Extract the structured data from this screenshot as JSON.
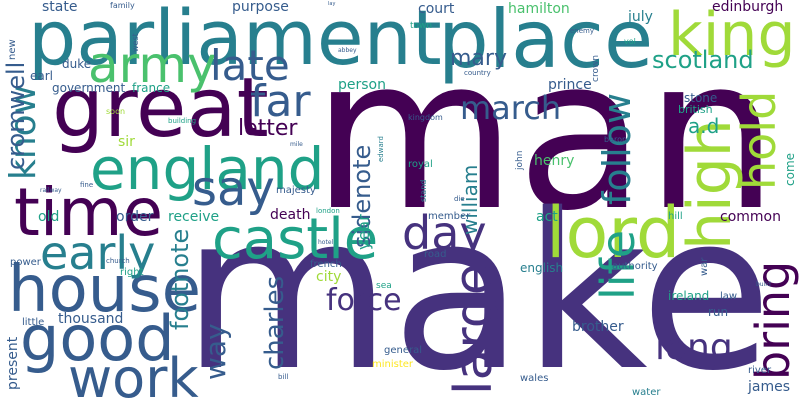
{
  "palette": {
    "dark_purple": "#440154",
    "purple": "#46327e",
    "indigo": "#365c8d",
    "blue": "#277f8e",
    "teal": "#1fa187",
    "green": "#4ac16d",
    "lime": "#a0da39",
    "yellow": "#fde725"
  },
  "words": [
    {
      "id": "man",
      "text": "man"
    },
    {
      "id": "make",
      "text": "make"
    },
    {
      "id": "parliament",
      "text": "parliament"
    },
    {
      "id": "place",
      "text": "place"
    },
    {
      "id": "king",
      "text": "king"
    },
    {
      "id": "army",
      "text": "army"
    },
    {
      "id": "great",
      "text": "great"
    },
    {
      "id": "england",
      "text": "england"
    },
    {
      "id": "time",
      "text": "time"
    },
    {
      "id": "castle",
      "text": "castle"
    },
    {
      "id": "lord",
      "text": "lord"
    },
    {
      "id": "house",
      "text": "house"
    },
    {
      "id": "good",
      "text": "good"
    },
    {
      "id": "work",
      "text": "work"
    },
    {
      "id": "early",
      "text": "early"
    },
    {
      "id": "say",
      "text": "say"
    },
    {
      "id": "far",
      "text": "far"
    },
    {
      "id": "late",
      "text": "late"
    },
    {
      "id": "day",
      "text": "day"
    },
    {
      "id": "high",
      "text": "high"
    },
    {
      "id": "hold",
      "text": "hold"
    },
    {
      "id": "bring",
      "text": "bring"
    },
    {
      "id": "large",
      "text": "large"
    },
    {
      "id": "life",
      "text": "life"
    },
    {
      "id": "follow",
      "text": "follow"
    },
    {
      "id": "know",
      "text": "know"
    },
    {
      "id": "force",
      "text": "force"
    },
    {
      "id": "long",
      "text": "long"
    },
    {
      "id": "march",
      "text": "march"
    },
    {
      "id": "mary",
      "text": "mary"
    },
    {
      "id": "scotland",
      "text": "scotland"
    },
    {
      "id": "cromwell",
      "text": "cromwell"
    },
    {
      "id": "way",
      "text": "way"
    },
    {
      "id": "charles",
      "text": "charles"
    },
    {
      "id": "footnote",
      "text": "footnote"
    },
    {
      "id": "sidenote",
      "text": "sidenote"
    },
    {
      "id": "william",
      "text": "william"
    },
    {
      "id": "letter",
      "text": "letter"
    },
    {
      "id": "a_d",
      "text": "a.d"
    },
    {
      "id": "edinburgh",
      "text": "edinburgh"
    },
    {
      "id": "state",
      "text": "state"
    },
    {
      "id": "purpose",
      "text": "purpose"
    },
    {
      "id": "hamilton",
      "text": "hamilton"
    },
    {
      "id": "court",
      "text": "court"
    },
    {
      "id": "july",
      "text": "july"
    },
    {
      "id": "person",
      "text": "person"
    },
    {
      "id": "prince",
      "text": "prince"
    },
    {
      "id": "government",
      "text": "government"
    },
    {
      "id": "france",
      "text": "france"
    },
    {
      "id": "sir",
      "text": "sir"
    },
    {
      "id": "stone",
      "text": "stone"
    },
    {
      "id": "british",
      "text": "british"
    },
    {
      "id": "order",
      "text": "order"
    },
    {
      "id": "old",
      "text": "old"
    },
    {
      "id": "receive",
      "text": "receive"
    },
    {
      "id": "death",
      "text": "death"
    },
    {
      "id": "common",
      "text": "common"
    },
    {
      "id": "act",
      "text": "act"
    },
    {
      "id": "henry",
      "text": "henry"
    },
    {
      "id": "year",
      "text": "year"
    },
    {
      "id": "city",
      "text": "city"
    },
    {
      "id": "thousand",
      "text": "thousand"
    },
    {
      "id": "english",
      "text": "english"
    },
    {
      "id": "ireland",
      "text": "ireland"
    },
    {
      "id": "brother",
      "text": "brother"
    },
    {
      "id": "general",
      "text": "general"
    },
    {
      "id": "minister",
      "text": "minister"
    },
    {
      "id": "present",
      "text": "present"
    },
    {
      "id": "wales",
      "text": "wales"
    },
    {
      "id": "james",
      "text": "james"
    },
    {
      "id": "water",
      "text": "water"
    },
    {
      "id": "river",
      "text": "river"
    },
    {
      "id": "run",
      "text": "run"
    },
    {
      "id": "law",
      "text": "law"
    },
    {
      "id": "come",
      "text": "come"
    },
    {
      "id": "new",
      "text": "new"
    },
    {
      "id": "earl",
      "text": "earl"
    },
    {
      "id": "duke",
      "text": "duke"
    },
    {
      "id": "family",
      "text": "family"
    },
    {
      "id": "west",
      "text": "west"
    },
    {
      "id": "town",
      "text": "town"
    },
    {
      "id": "country",
      "text": "country"
    },
    {
      "id": "enemy",
      "text": "enemy"
    },
    {
      "id": "vol",
      "text": "vol"
    },
    {
      "id": "crown",
      "text": "crown"
    },
    {
      "id": "kingdom",
      "text": "kingdom"
    },
    {
      "id": "soon",
      "text": "soon"
    },
    {
      "id": "building",
      "text": "building"
    },
    {
      "id": "mile",
      "text": "mile"
    },
    {
      "id": "edward",
      "text": "edward"
    },
    {
      "id": "baron",
      "text": "baron"
    },
    {
      "id": "royal",
      "text": "royal"
    },
    {
      "id": "john",
      "text": "john"
    },
    {
      "id": "majesty",
      "text": "majesty"
    },
    {
      "id": "stand",
      "text": "stand"
    },
    {
      "id": "die",
      "text": "die"
    },
    {
      "id": "hill",
      "text": "hill"
    },
    {
      "id": "member",
      "text": "member"
    },
    {
      "id": "road",
      "text": "road"
    },
    {
      "id": "french",
      "text": "french"
    },
    {
      "id": "authority",
      "text": "authority"
    },
    {
      "id": "war",
      "text": "war"
    },
    {
      "id": "power",
      "text": "power"
    },
    {
      "id": "church",
      "text": "church"
    },
    {
      "id": "right",
      "text": "right"
    },
    {
      "id": "little",
      "text": "little"
    },
    {
      "id": "fine",
      "text": "fine"
    },
    {
      "id": "railway",
      "text": "railway"
    },
    {
      "id": "london",
      "text": "london"
    },
    {
      "id": "hotel",
      "text": "hotel"
    },
    {
      "id": "build",
      "text": "build"
    },
    {
      "id": "sea",
      "text": "sea"
    },
    {
      "id": "bill",
      "text": "bill"
    },
    {
      "id": "abbey",
      "text": "abbey"
    },
    {
      "id": "lay",
      "text": "lay"
    }
  ]
}
